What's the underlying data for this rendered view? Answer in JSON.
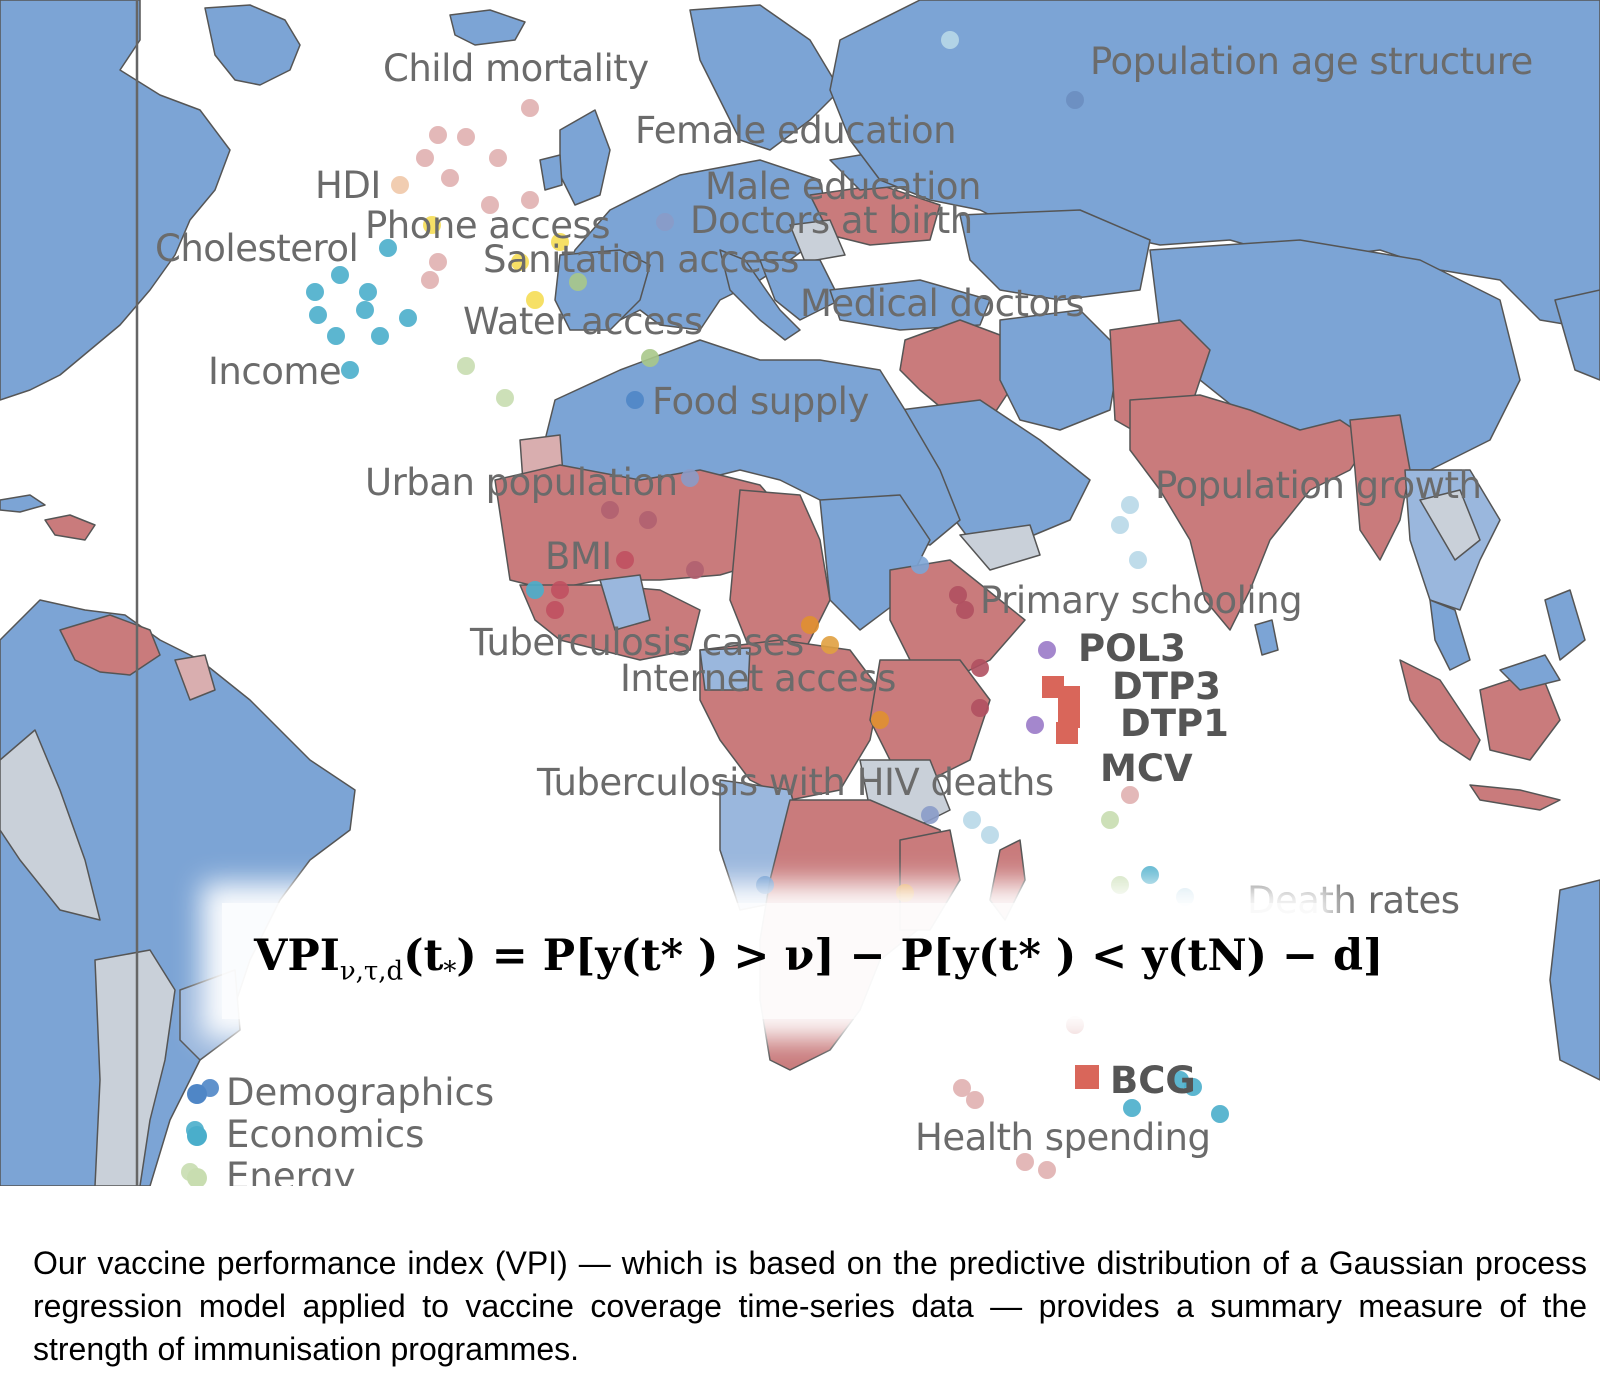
{
  "colors": {
    "ocean": "#ffffff",
    "land_blue": "#7ca4d5",
    "land_red": "#c97b7c",
    "land_gray": "#c9d0d9",
    "border": "#555555"
  },
  "indicator_labels": [
    {
      "text": "Child mortality"
    },
    {
      "text": "Population age structure"
    },
    {
      "text": "Female education"
    },
    {
      "text": "HDI"
    },
    {
      "text": "Male education"
    },
    {
      "text": "Phone access"
    },
    {
      "text": "Doctors at birth"
    },
    {
      "text": "Cholesterol"
    },
    {
      "text": "Sanitation access"
    },
    {
      "text": "Medical doctors"
    },
    {
      "text": "Water access"
    },
    {
      "text": "Income"
    },
    {
      "text": "Food supply"
    },
    {
      "text": "Urban population"
    },
    {
      "text": "Population growth"
    },
    {
      "text": "BMI"
    },
    {
      "text": "Primary schooling"
    },
    {
      "text": "Tuberculosis cases"
    },
    {
      "text": "Internet access"
    },
    {
      "text": "Tuberculosis with HIV deaths"
    },
    {
      "text": "Death rates"
    },
    {
      "text": "Health spending"
    }
  ],
  "vaccine_labels": [
    "POL3",
    "DTP3",
    "DTP1",
    "MCV",
    "BCG"
  ],
  "legend": [
    {
      "label": "Demographics",
      "color": "#4f86c6"
    },
    {
      "label": "Economics",
      "color": "#4aaecb"
    },
    {
      "label": "Energy",
      "color": "#c8ddb0"
    }
  ],
  "formula": {
    "lhs": "VPI",
    "lhs_sub": "ν,τ,d",
    "lhs_arg": "(t",
    "lhs_arg_sub": "*",
    "rest": ") = P[y(t* ) > ν] − P[y(t* ) < y(tN) − d]"
  },
  "caption": "Our vaccine performance index (VPI) — which is based on the predictive distribution of a Gaussian process regression model applied to vaccine coverage time-series data — provides a summary measure of the strength of immunisation programmes."
}
